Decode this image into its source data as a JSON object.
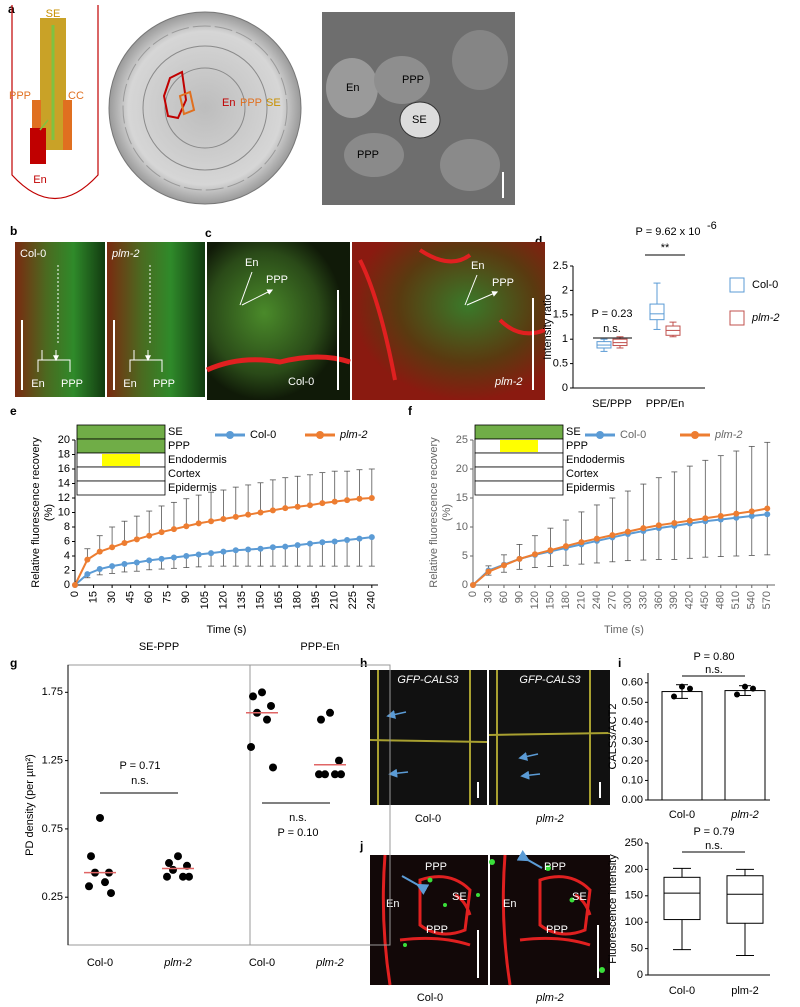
{
  "panel_labels": [
    "a",
    "b",
    "c",
    "d",
    "e",
    "f",
    "g",
    "h",
    "i",
    "j"
  ],
  "images": {
    "a_schematic": [
      "SE",
      "PPP",
      "CC",
      "En"
    ],
    "a_section": [
      "En",
      "PPP",
      "SE"
    ],
    "a_em": [
      "En",
      "PPP",
      "SE",
      "PPP"
    ],
    "b": [
      "Col-0",
      "plm-2",
      "En",
      "PPP",
      "En",
      "PPP"
    ],
    "c": [
      "En",
      "PPP",
      "Col-0",
      "En",
      "PPP",
      "plm-2"
    ],
    "h": [
      "GFP-CALS3",
      "GFP-CALS3",
      "Col-0",
      "plm-2"
    ],
    "j": [
      "PPP",
      "En",
      "SE",
      "PPP",
      "Col-0",
      "PPP",
      "En",
      "SE",
      "PPP",
      "plm-2"
    ]
  },
  "chart_data": [
    {
      "type": "box",
      "ylabel": "Intensity ratio",
      "categories": [
        "SE/PPP",
        "PPP/En"
      ],
      "ylim": [
        0,
        2.5
      ],
      "yticks": [
        0,
        0.5,
        1,
        1.5,
        2,
        2.5
      ],
      "series": [
        {
          "name": "Col-0",
          "color": "#5b9bd5",
          "boxes": [
            {
              "min": 0.75,
              "q1": 0.82,
              "median": 0.88,
              "q3": 0.95,
              "max": 1.0
            },
            {
              "min": 1.2,
              "q1": 1.4,
              "median": 1.52,
              "q3": 1.72,
              "max": 2.15
            }
          ]
        },
        {
          "name": "plm-2",
          "color": "#c0504d",
          "boxes": [
            {
              "min": 0.82,
              "q1": 0.87,
              "median": 0.93,
              "q3": 1.0,
              "max": 1.05
            },
            {
              "min": 1.05,
              "q1": 1.08,
              "median": 1.18,
              "q3": 1.27,
              "max": 1.35
            }
          ]
        }
      ],
      "annotations": [
        "P = 0.23",
        "n.s.",
        "P = 9.62 x 10",
        "-6",
        "**"
      ]
    },
    {
      "type": "line",
      "xlabel": "Time (s)",
      "ylabel": [
        "Relative fluorescence recovery",
        "(%)"
      ],
      "axis_color": "#000000",
      "legend": "top",
      "x": [
        0,
        10,
        20,
        30,
        40,
        50,
        60,
        70,
        80,
        90,
        100,
        110,
        120,
        130,
        140,
        150,
        160,
        170,
        180,
        190,
        200,
        210,
        220,
        230,
        240
      ],
      "xlim": [
        0,
        245
      ],
      "xticks": [
        0,
        15,
        30,
        45,
        60,
        75,
        90,
        105,
        120,
        135,
        150,
        165,
        180,
        195,
        210,
        225,
        240
      ],
      "ylim": [
        0,
        20
      ],
      "yticks": [
        0,
        2,
        4,
        6,
        8,
        10,
        12,
        14,
        16,
        18,
        20
      ],
      "layers": [
        {
          "name": "SE",
          "color": "#70ad47"
        },
        {
          "name": "PPP",
          "color": "#70ad47"
        },
        {
          "name": "Endodermis",
          "color": "#ffffff",
          "highlight": "#ffff00"
        },
        {
          "name": "Cortex",
          "color": "#ffffff"
        },
        {
          "name": "Epidermis",
          "color": "#ffffff"
        }
      ],
      "series": [
        {
          "name": "Col-0",
          "color": "#5b9bd5",
          "error_direction": "down",
          "values": [
            0,
            1.5,
            2.2,
            2.6,
            2.9,
            3.1,
            3.4,
            3.6,
            3.8,
            4.0,
            4.2,
            4.4,
            4.6,
            4.8,
            4.9,
            5.0,
            5.2,
            5.3,
            5.5,
            5.7,
            5.9,
            6.0,
            6.2,
            6.4,
            6.6
          ],
          "errors": [
            0,
            0.5,
            0.8,
            1,
            1.1,
            1.2,
            1.3,
            1.4,
            1.5,
            1.6,
            1.7,
            1.8,
            2.0,
            2.2,
            2.3,
            2.4,
            2.6,
            2.7,
            2.9,
            3.1,
            3.3,
            3.4,
            3.6,
            3.8,
            4.0
          ]
        },
        {
          "name": "plm-2",
          "color": "#ed7d31",
          "error_direction": "up",
          "values": [
            0,
            3.5,
            4.6,
            5.2,
            5.8,
            6.3,
            6.8,
            7.3,
            7.7,
            8.1,
            8.5,
            8.8,
            9.1,
            9.4,
            9.7,
            10.0,
            10.3,
            10.6,
            10.8,
            11.0,
            11.3,
            11.5,
            11.7,
            11.9,
            12.0
          ],
          "errors": [
            0,
            1.5,
            2.2,
            2.8,
            3.0,
            3.2,
            3.4,
            3.6,
            3.7,
            3.8,
            3.9,
            4.0,
            4.0,
            4.1,
            4.1,
            4.1,
            4.2,
            4.2,
            4.2,
            4.2,
            4.2,
            4.2,
            4.0,
            4.0,
            4.0
          ]
        }
      ]
    },
    {
      "type": "line",
      "xlabel": "Time (s)",
      "ylabel": [
        "Relative fluorescence recovery",
        "(%)"
      ],
      "axis_color": "#666666",
      "legend": "top",
      "x": [
        0,
        30,
        60,
        90,
        120,
        150,
        180,
        210,
        240,
        270,
        300,
        330,
        360,
        390,
        420,
        450,
        480,
        510,
        540,
        570
      ],
      "xlim": [
        0,
        585
      ],
      "xticks": [
        0,
        30,
        60,
        90,
        120,
        150,
        180,
        210,
        240,
        270,
        300,
        330,
        360,
        390,
        420,
        450,
        480,
        510,
        540,
        570
      ],
      "ylim": [
        0,
        25
      ],
      "yticks": [
        0,
        5,
        10,
        15,
        20,
        25
      ],
      "layers": [
        {
          "name": "SE",
          "color": "#70ad47"
        },
        {
          "name": "PPP",
          "color": "#ffffff",
          "highlight": "#ffff00"
        },
        {
          "name": "Endodermis",
          "color": "#ffffff"
        },
        {
          "name": "Cortex",
          "color": "#ffffff"
        },
        {
          "name": "Epidermis",
          "color": "#ffffff"
        }
      ],
      "series": [
        {
          "name": "Col-0",
          "color": "#5b9bd5",
          "error_direction": "down",
          "values": [
            0,
            2.5,
            3.5,
            4.5,
            5.2,
            5.8,
            6.4,
            7.0,
            7.6,
            8.2,
            8.8,
            9.3,
            9.8,
            10.2,
            10.6,
            11.0,
            11.3,
            11.6,
            11.9,
            12.2
          ],
          "errors": [
            0,
            0.8,
            1.3,
            1.8,
            2.2,
            2.6,
            3.0,
            3.4,
            3.8,
            4.2,
            4.6,
            5.0,
            5.4,
            5.8,
            6.0,
            6.2,
            6.4,
            6.6,
            6.8,
            7.0
          ]
        },
        {
          "name": "plm-2",
          "color": "#ed7d31",
          "error_direction": "up",
          "values": [
            0,
            2.3,
            3.4,
            4.5,
            5.3,
            6.0,
            6.7,
            7.4,
            8.0,
            8.6,
            9.2,
            9.8,
            10.3,
            10.7,
            11.1,
            11.5,
            11.9,
            12.3,
            12.7,
            13.2
          ],
          "errors": [
            0,
            1,
            1.8,
            2.5,
            3.2,
            3.8,
            4.5,
            5.2,
            5.8,
            6.4,
            7.0,
            7.6,
            8.2,
            8.8,
            9.4,
            10,
            10.4,
            10.8,
            11.2,
            11.4
          ]
        }
      ]
    },
    {
      "type": "dot",
      "ylabel": "PD density (per µm²)",
      "ylim": [
        -0.1,
        1.95
      ],
      "yticks": [
        0.25,
        0.75,
        1.25,
        1.75
      ],
      "mean_color": "#e06666",
      "panels": [
        {
          "title": "SE-PPP",
          "categories": [
            "Col-0",
            "plm-2"
          ],
          "values": [
            [
              0.83,
              0.55,
              0.43,
              0.43,
              0.36,
              0.33,
              0.28
            ],
            [
              0.55,
              0.5,
              0.48,
              0.45,
              0.4,
              0.4,
              0.4
            ]
          ],
          "means": [
            0.43,
            0.46
          ],
          "annotations": [
            "P = 0.71",
            "n.s."
          ]
        },
        {
          "title": "PPP-En",
          "categories": [
            "Col-0",
            "plm-2"
          ],
          "values": [
            [
              1.75,
              1.72,
              1.65,
              1.6,
              1.55,
              1.35,
              1.2
            ],
            [
              1.6,
              1.55,
              1.25,
              1.15,
              1.15,
              1.15,
              1.15
            ]
          ],
          "means": [
            1.6,
            1.22
          ],
          "annotations": [
            "n.s.",
            "P = 0.10"
          ]
        }
      ]
    },
    {
      "type": "bar",
      "ylabel": "CALS3/ACT2",
      "categories": [
        "Col-0",
        "plm-2"
      ],
      "values": [
        0.555,
        0.56
      ],
      "errors": [
        0.035,
        0.025
      ],
      "points": [
        [
          0.53,
          0.57,
          0.58
        ],
        [
          0.54,
          0.57,
          0.58
        ]
      ],
      "ylim": [
        0,
        0.65
      ],
      "yticks": [
        {
          "value": 0,
          "label": "0.00"
        },
        {
          "value": 0.1,
          "label": "0.10"
        },
        {
          "value": 0.2,
          "label": "0.20"
        },
        {
          "value": 0.3,
          "label": "0.30"
        },
        {
          "value": 0.4,
          "label": "0.40"
        },
        {
          "value": 0.5,
          "label": "0.50"
        },
        {
          "value": 0.6,
          "label": "0.60"
        }
      ],
      "annotations": [
        "P = 0.80",
        "n.s."
      ]
    },
    {
      "type": "box",
      "ylabel": "Fluorescence intensity",
      "categories": [
        "Col-0",
        "plm-2"
      ],
      "ylim": [
        0,
        250
      ],
      "yticks": [
        0,
        50,
        100,
        150,
        200,
        250
      ],
      "series": [
        {
          "color": "#000000",
          "boxes": [
            {
              "min": 48,
              "q1": 105,
              "median": 155,
              "q3": 185,
              "max": 202
            },
            {
              "min": 37,
              "q1": 98,
              "median": 153,
              "q3": 188,
              "max": 200
            }
          ]
        }
      ],
      "annotations": [
        "P = 0.79",
        "n.s."
      ]
    }
  ]
}
